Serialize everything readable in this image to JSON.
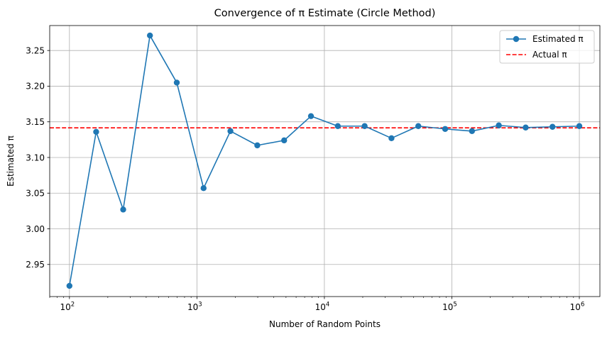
{
  "chart_data": {
    "type": "line",
    "title": "Convergence of π Estimate (Circle Method)",
    "xlabel": "Number of Random Points",
    "ylabel": "Estimated π",
    "xscale": "log",
    "xlim": [
      70,
      1450000
    ],
    "ylim": [
      2.905,
      3.285
    ],
    "grid": true,
    "legend_position": "top-right",
    "x_ticks": [
      {
        "value": 100,
        "base": "10",
        "exp": "2"
      },
      {
        "value": 1000,
        "base": "10",
        "exp": "3"
      },
      {
        "value": 10000,
        "base": "10",
        "exp": "4"
      },
      {
        "value": 100000,
        "base": "10",
        "exp": "5"
      },
      {
        "value": 1000000,
        "base": "10",
        "exp": "6"
      }
    ],
    "y_ticks": [
      {
        "value": 2.95,
        "label": "2.95"
      },
      {
        "value": 3.0,
        "label": "3.00"
      },
      {
        "value": 3.05,
        "label": "3.05"
      },
      {
        "value": 3.1,
        "label": "3.10"
      },
      {
        "value": 3.15,
        "label": "3.15"
      },
      {
        "value": 3.2,
        "label": "3.20"
      },
      {
        "value": 3.25,
        "label": "3.25"
      }
    ],
    "series": [
      {
        "name": "Estimated π",
        "color": "#1f77b4",
        "marker": "circle",
        "x": [
          100,
          162,
          264,
          428,
          695,
          1128,
          1832,
          2976,
          4833,
          7848,
          12743,
          20691,
          33598,
          54556,
          88586,
          143844,
          233572,
          379269,
          615848,
          1000000
        ],
        "y": [
          2.92,
          3.136,
          3.027,
          3.271,
          3.205,
          3.057,
          3.137,
          3.117,
          3.124,
          3.158,
          3.144,
          3.144,
          3.127,
          3.144,
          3.14,
          3.137,
          3.145,
          3.142,
          3.143,
          3.144
        ]
      }
    ],
    "reference_lines": [
      {
        "name": "Actual π",
        "y": 3.14159,
        "color": "#ff0000",
        "style": "dashed"
      }
    ]
  }
}
